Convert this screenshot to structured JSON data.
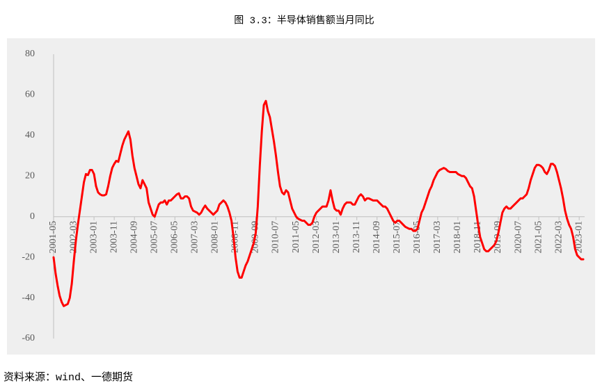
{
  "chart_data": {
    "type": "line",
    "title": "图 3.3：半导体销售额当月同比",
    "source": "资料来源：wind、一德期货",
    "color": "#ff0000",
    "ylim": [
      -60,
      80
    ],
    "yticks": [
      -60,
      -40,
      -20,
      0,
      20,
      40,
      60,
      80
    ],
    "categories": [
      "2001-05",
      null,
      null,
      null,
      null,
      null,
      null,
      null,
      null,
      null,
      "2002-03",
      null,
      null,
      null,
      null,
      null,
      null,
      null,
      null,
      null,
      "2003-01",
      null,
      null,
      null,
      null,
      null,
      null,
      null,
      null,
      null,
      "2003-11",
      null,
      null,
      null,
      null,
      null,
      null,
      null,
      null,
      null,
      "2004-09",
      null,
      null,
      null,
      null,
      null,
      null,
      null,
      null,
      null,
      "2005-07",
      null,
      null,
      null,
      null,
      null,
      null,
      null,
      null,
      null,
      "2006-05",
      null,
      null,
      null,
      null,
      null,
      null,
      null,
      null,
      null,
      "2007-03",
      null,
      null,
      null,
      null,
      null,
      null,
      null,
      null,
      null,
      "2008-01",
      null,
      null,
      null,
      null,
      null,
      null,
      null,
      null,
      null,
      "2008-11",
      null,
      null,
      null,
      null,
      null,
      null,
      null,
      null,
      null,
      "2009-09",
      null,
      null,
      null,
      null,
      null,
      null,
      null,
      null,
      null,
      "2010-07",
      null,
      null,
      null,
      null,
      null,
      null,
      null,
      null,
      null,
      "2011-05",
      null,
      null,
      null,
      null,
      null,
      null,
      null,
      null,
      null,
      "2012-03",
      null,
      null,
      null,
      null,
      null,
      null,
      null,
      null,
      null,
      "2013-01",
      null,
      null,
      null,
      null,
      null,
      null,
      null,
      null,
      null,
      "2013-11",
      null,
      null,
      null,
      null,
      null,
      null,
      null,
      null,
      null,
      "2014-09",
      null,
      null,
      null,
      null,
      null,
      null,
      null,
      null,
      null,
      "2015-07",
      null,
      null,
      null,
      null,
      null,
      null,
      null,
      null,
      null,
      "2016-05",
      null,
      null,
      null,
      null,
      null,
      null,
      null,
      null,
      null,
      "2017-03",
      null,
      null,
      null,
      null,
      null,
      null,
      null,
      null,
      null,
      "2018-01",
      null,
      null,
      null,
      null,
      null,
      null,
      null,
      null,
      null,
      "2018-11",
      null,
      null,
      null,
      null,
      null,
      null,
      null,
      null,
      null,
      "2019-09",
      null,
      null,
      null,
      null,
      null,
      null,
      null,
      null,
      null,
      "2020-07",
      null,
      null,
      null,
      null,
      null,
      null,
      null,
      null,
      null,
      "2021-05",
      null,
      null,
      null,
      null,
      null,
      null,
      null,
      null,
      null,
      "2022-03",
      null,
      null,
      null,
      null,
      null,
      null,
      null,
      null,
      null,
      "2023-01",
      null,
      null
    ],
    "values": [
      -20,
      -28,
      -34,
      -39,
      -42,
      -44,
      -43.5,
      -43,
      -40,
      -33,
      -22,
      -12,
      -4,
      3,
      10,
      17,
      21,
      20.5,
      23,
      23,
      21,
      15,
      12,
      11,
      10.5,
      10.5,
      11,
      15,
      20,
      24,
      26,
      27.5,
      27,
      31,
      35,
      38,
      40,
      42,
      38,
      30,
      24,
      20,
      16,
      14,
      18,
      16,
      14,
      7,
      4,
      1,
      0,
      3,
      6,
      7,
      7,
      8,
      6,
      8,
      8,
      9,
      10,
      11,
      11.5,
      9,
      9,
      10,
      10,
      9,
      5,
      3,
      2.5,
      2,
      1,
      2,
      4,
      5.5,
      4,
      3,
      2,
      1,
      2,
      3,
      6,
      7,
      8,
      7,
      5,
      2,
      -2,
      -10,
      -20,
      -27,
      -30,
      -30,
      -27,
      -24,
      -22,
      -19,
      -16,
      -13,
      -8,
      5,
      25,
      42,
      55,
      57,
      52,
      49,
      43,
      37,
      30,
      22,
      15,
      12,
      11,
      13,
      12,
      8,
      4,
      2,
      0,
      -1,
      -1.5,
      -2,
      -2,
      -3,
      -4,
      -4,
      -3,
      0,
      2,
      3,
      4,
      5,
      5,
      5,
      8,
      13,
      8,
      4,
      3,
      3,
      1,
      4,
      6,
      7,
      7,
      7,
      6,
      6,
      8,
      10,
      11,
      10,
      8,
      9,
      9,
      8.5,
      8,
      8,
      8,
      7,
      6,
      5,
      5,
      4,
      2,
      0,
      -2,
      -3,
      -2,
      -2,
      -3,
      -4,
      -5,
      -5.5,
      -6,
      -6,
      -7,
      -7,
      -6,
      -2,
      2,
      4,
      7,
      10,
      13,
      15,
      18,
      20,
      22,
      23,
      23.5,
      24,
      23.5,
      22.5,
      22,
      22,
      22,
      22,
      21,
      20.5,
      20,
      20,
      19,
      17,
      15,
      14,
      10,
      3,
      -4,
      -10,
      -13,
      -16,
      -17,
      -17,
      -16,
      -15,
      -14,
      -12,
      -8,
      -3,
      2,
      4,
      5,
      4,
      4,
      5,
      6,
      7,
      8,
      9,
      9,
      10,
      11,
      14,
      18,
      21,
      24,
      25.5,
      25.5,
      25,
      24,
      22,
      21,
      23,
      26,
      26,
      25,
      22,
      18,
      14,
      9,
      3,
      -1,
      -4,
      -6,
      -10,
      -16,
      -19,
      -20,
      -21,
      -21
    ]
  }
}
